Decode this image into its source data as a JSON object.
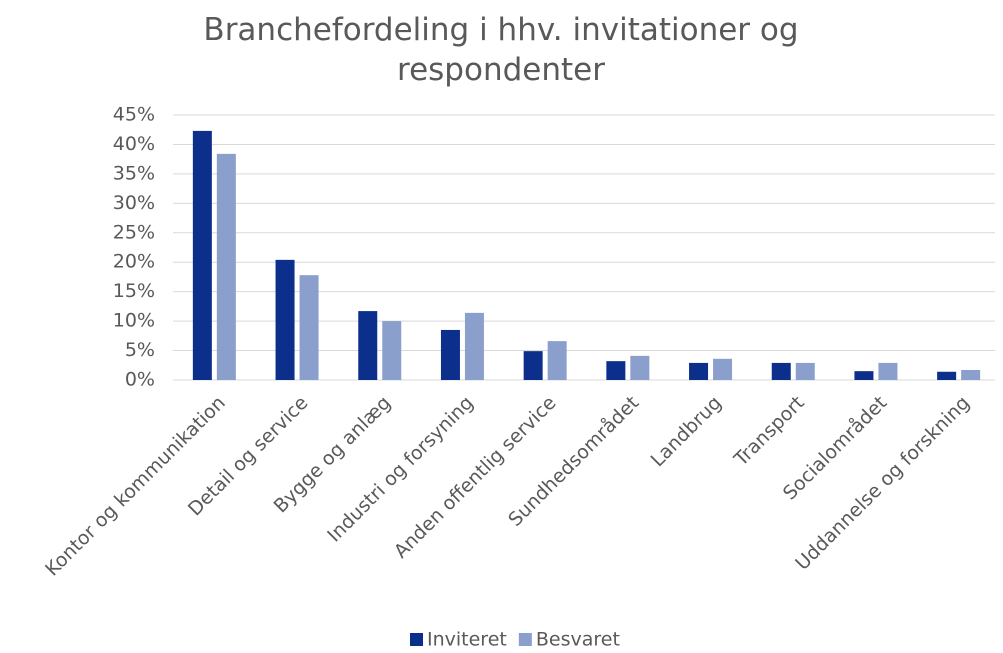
{
  "chart_data": {
    "type": "bar",
    "title": "Branchefordeling i hhv. invitationer og respondenter",
    "categories": [
      "Kontor og kommunikation",
      "Detail og service",
      "Bygge og anlæg",
      "Industri og forsyning",
      "Anden offentlig service",
      "Sundhedsområdet",
      "Landbrug",
      "Transport",
      "Socialområdet",
      "Uddannelse og forskning"
    ],
    "series": [
      {
        "name": "Inviteret",
        "color": "#0b2f8a",
        "values": [
          42.3,
          20.4,
          11.7,
          8.5,
          4.9,
          3.2,
          2.9,
          2.9,
          1.5,
          1.4
        ]
      },
      {
        "name": "Besvaret",
        "color": "#8a9fcb",
        "values": [
          38.4,
          17.8,
          10.0,
          11.4,
          6.6,
          4.1,
          3.6,
          2.9,
          2.9,
          1.7
        ]
      }
    ],
    "ylim": [
      0,
      45
    ],
    "yticks": [
      {
        "value": 0,
        "label": "0%"
      },
      {
        "value": 5,
        "label": "5%"
      },
      {
        "value": 10,
        "label": "10%"
      },
      {
        "value": 15,
        "label": "15%"
      },
      {
        "value": 20,
        "label": "20%"
      },
      {
        "value": 25,
        "label": "25%"
      },
      {
        "value": 30,
        "label": "30%"
      },
      {
        "value": 35,
        "label": "35%"
      },
      {
        "value": 40,
        "label": "40%"
      },
      {
        "value": 45,
        "label": "45%"
      }
    ],
    "grid": true,
    "legend": "bottom"
  }
}
